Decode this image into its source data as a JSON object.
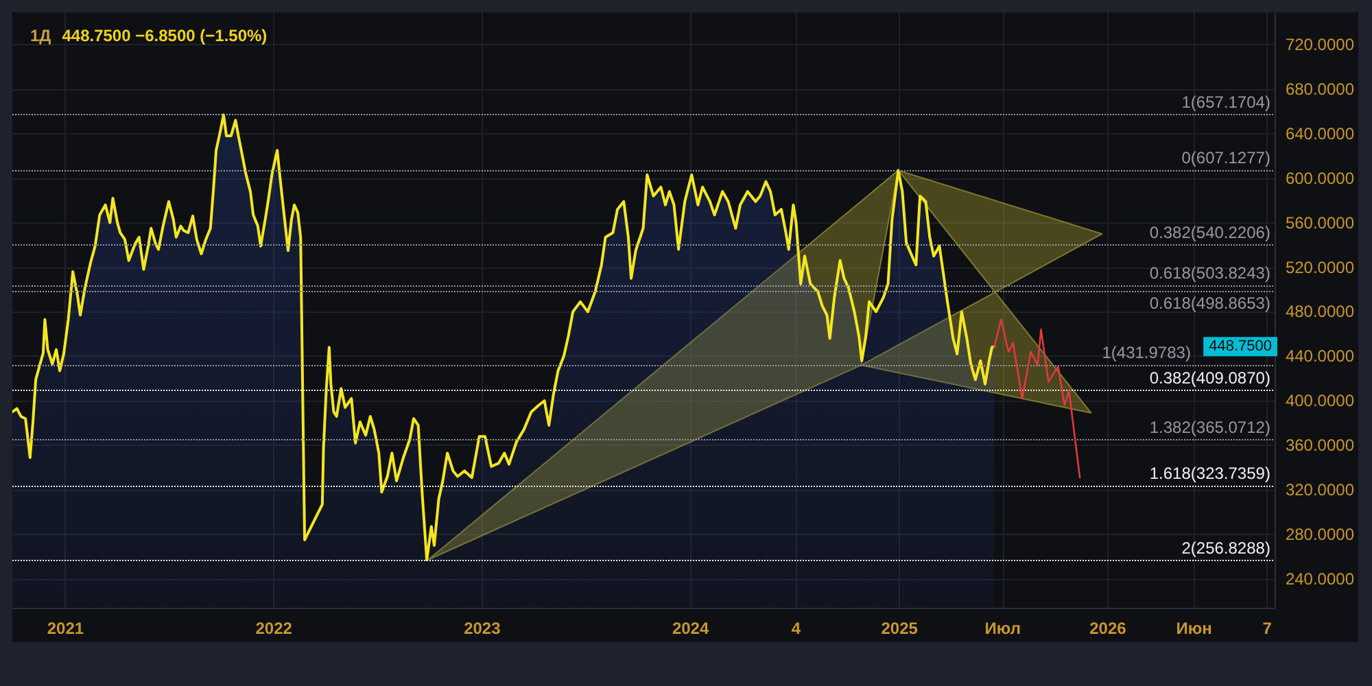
{
  "chart_data": {
    "type": "area",
    "title": "1Д",
    "subtitle": "448.7500 −6.8500 (−1.50%)",
    "x": [
      "2020-09-30",
      "2020-10-08",
      "2020-10-15",
      "2020-10-23",
      "2020-10-31",
      "2020-11-05",
      "2020-11-10",
      "2020-11-23",
      "2020-11-26",
      "2020-12-01",
      "2020-12-09",
      "2020-12-16",
      "2020-12-22",
      "2020-12-29",
      "2021-01-06",
      "2021-01-14",
      "2021-01-22",
      "2021-01-27",
      "2021-02-04",
      "2021-02-14",
      "2021-02-22",
      "2021-03-02",
      "2021-03-12",
      "2021-03-20",
      "2021-03-25",
      "2021-04-02",
      "2021-04-07",
      "2021-04-15",
      "2021-04-22",
      "2021-05-03",
      "2021-05-10",
      "2021-05-18",
      "2021-05-26",
      "2021-05-31",
      "2021-06-08",
      "2021-06-13",
      "2021-06-21",
      "2021-07-01",
      "2021-07-09",
      "2021-07-14",
      "2021-07-22",
      "2021-07-27",
      "2021-08-04",
      "2021-08-12",
      "2021-08-19",
      "2021-08-27",
      "2021-09-04",
      "2021-09-12",
      "2021-09-17",
      "2021-09-22",
      "2021-09-30",
      "2021-10-05",
      "2021-10-10",
      "2021-10-18",
      "2021-10-26",
      "2021-10-31",
      "2021-11-05",
      "2021-11-13",
      "2021-11-21",
      "2021-11-26",
      "2021-12-04",
      "2021-12-09",
      "2021-12-17",
      "2021-12-22",
      "2021-12-29",
      "2022-01-07",
      "2022-01-12",
      "2022-01-18",
      "2022-01-26",
      "2022-02-01",
      "2022-02-06",
      "2022-02-12",
      "2022-02-17",
      "2022-02-24",
      "2022-03-27",
      "2022-03-29",
      "2022-04-03",
      "2022-04-08",
      "2022-04-11",
      "2022-04-16",
      "2022-04-21",
      "2022-04-29",
      "2022-05-06",
      "2022-05-17",
      "2022-05-24",
      "2022-06-01",
      "2022-06-11",
      "2022-06-19",
      "2022-06-26",
      "2022-07-04",
      "2022-07-09",
      "2022-07-19",
      "2022-07-27",
      "2022-08-04",
      "2022-08-16",
      "2022-08-27",
      "2022-09-03",
      "2022-09-11",
      "2022-09-18",
      "2022-09-26",
      "2022-10-04",
      "2022-10-09",
      "2022-10-17",
      "2022-10-24",
      "2022-11-01",
      "2022-11-11",
      "2022-11-19",
      "2022-12-01",
      "2022-12-14",
      "2022-12-27",
      "2023-01-06",
      "2023-01-17",
      "2023-01-30",
      "2023-02-09",
      "2023-02-17",
      "2023-03-02",
      "2023-03-15",
      "2023-03-28",
      "2023-04-10",
      "2023-04-20",
      "2023-04-28",
      "2023-05-06",
      "2023-05-14",
      "2023-05-24",
      "2023-06-01",
      "2023-06-09",
      "2023-06-22",
      "2023-07-05",
      "2023-07-18",
      "2023-07-29",
      "2023-08-05",
      "2023-08-18",
      "2023-08-26",
      "2023-09-06",
      "2023-09-14",
      "2023-09-19",
      "2023-09-27",
      "2023-10-10",
      "2023-10-17",
      "2023-10-28",
      "2023-11-10",
      "2023-11-18",
      "2023-11-25",
      "2023-12-03",
      "2023-12-11",
      "2023-12-22",
      "2024-01-03",
      "2024-01-14",
      "2024-01-22",
      "2024-02-04",
      "2024-02-12",
      "2024-02-26",
      "2024-03-07",
      "2024-03-20",
      "2024-03-28",
      "2024-04-10",
      "2024-04-24",
      "2024-05-02",
      "2024-05-12",
      "2024-05-20",
      "2024-05-28",
      "2024-06-08",
      "2024-06-16",
      "2024-06-21",
      "2024-06-29",
      "2024-07-04",
      "2024-07-12",
      "2024-07-19",
      "2024-07-29",
      "2024-08-11",
      "2024-08-19",
      "2024-08-27",
      "2024-09-01",
      "2024-09-09",
      "2024-09-19",
      "2024-09-26",
      "2024-10-04",
      "2024-10-14",
      "2024-10-22",
      "2024-10-27",
      "2024-11-03",
      "2024-11-09",
      "2024-11-21",
      "2024-12-04",
      "2024-12-12",
      "2024-12-19",
      "2024-12-30",
      "2025-01-06",
      "2025-01-13",
      "2025-01-23",
      "2025-01-30",
      "2025-02-06",
      "2025-02-16",
      "2025-02-23",
      "2025-03-02",
      "2025-03-12",
      "2025-03-19",
      "2025-03-26",
      "2025-04-05",
      "2025-04-12",
      "2025-04-20",
      "2025-04-29",
      "2025-05-06",
      "2025-05-14",
      "2025-05-23",
      "2025-05-31",
      "2025-06-07",
      "2025-06-12",
      "2025-06-16"
    ],
    "series": [
      {
        "color": "#f5e620",
        "values": [
          390,
          393,
          386,
          384,
          349,
          380,
          419,
          443,
          473,
          446,
          433,
          446,
          427,
          442,
          473,
          516,
          495,
          477,
          501,
          524,
          539,
          567,
          576,
          560,
          582,
          560,
          551,
          545,
          526,
          541,
          547,
          518,
          539,
          555,
          541,
          536,
          557,
          579,
          563,
          547,
          557,
          553,
          551,
          566,
          545,
          532,
          545,
          555,
          588,
          625,
          644,
          657,
          638,
          638,
          652,
          638,
          625,
          604,
          588,
          567,
          557,
          539,
          563,
          579,
          604,
          625,
          600,
          572,
          535,
          563,
          576,
          569,
          547,
          275,
          307,
          357,
          411,
          448,
          415,
          390,
          386,
          411,
          394,
          402,
          362,
          381,
          369,
          386,
          374,
          353,
          318,
          332,
          353,
          328,
          349,
          365,
          384,
          378,
          316,
          257,
          287,
          270,
          312,
          328,
          353,
          337,
          332,
          337,
          331,
          368,
          368,
          341,
          344,
          353,
          343,
          363,
          374,
          390,
          396,
          400,
          378,
          406,
          427,
          440,
          458,
          480,
          489,
          480,
          498,
          522,
          547,
          551,
          572,
          579,
          547,
          510,
          535,
          555,
          603,
          584,
          592,
          576,
          588,
          576,
          536,
          579,
          603,
          576,
          592,
          579,
          567,
          588,
          579,
          555,
          576,
          588,
          579,
          584,
          597,
          588,
          567,
          572,
          551,
          536,
          576,
          560,
          505,
          530,
          505,
          498,
          485,
          477,
          456,
          493,
          526,
          510,
          501,
          480,
          458,
          436,
          458,
          489,
          480,
          493,
          505,
          563,
          607,
          588,
          542,
          530,
          522,
          584,
          579,
          547,
          530,
          539,
          514,
          489,
          456,
          442,
          480,
          456,
          433,
          419,
          436,
          415,
          436,
          448,
          448.75
        ]
      },
      {
        "type": "area",
        "color": "#b3aa35",
        "x": [
          "2022-09-28",
          "2024-12-30",
          "2025-12-22",
          "2024-10-26",
          "2025-12-03",
          "2024-12-30",
          "2024-10-26",
          "2022-09-28"
        ],
        "values": [
          257,
          607,
          550,
          432,
          389,
          607,
          432,
          257
        ]
      },
      {
        "type": "line",
        "color": "#e0393e",
        "x": [
          "2025-06-16",
          "2025-06-28",
          "2025-07-11",
          "2025-07-19",
          "2025-08-04",
          "2025-08-19",
          "2025-08-31",
          "2025-09-06",
          "2025-09-19",
          "2025-10-06",
          "2025-10-17",
          "2025-10-25",
          "2025-11-13"
        ],
        "values": [
          448,
          473,
          444,
          452,
          402,
          444,
          432,
          464,
          417,
          431,
          396,
          409,
          331
        ]
      }
    ],
    "xlim": [
      "2020-09-30",
      "2026-10-20"
    ],
    "xticks": [
      {
        "value": "2021-01-01",
        "label": "2021"
      },
      {
        "value": "2022-01-01",
        "label": "2022"
      },
      {
        "value": "2023-01-01",
        "label": "2023"
      },
      {
        "value": "2024-01-01",
        "label": "2024"
      },
      {
        "value": "2024-07-04",
        "label": "4"
      },
      {
        "value": "2025-01-01",
        "label": "2025"
      },
      {
        "value": "2025-07-01",
        "label": "Июл"
      },
      {
        "value": "2026-01-01",
        "label": "2026"
      },
      {
        "value": "2026-06-01",
        "label": "Июн"
      },
      {
        "value": "2026-10-07",
        "label": "7"
      }
    ],
    "ylim": [
      214,
      749
    ],
    "yticks": [
      {
        "value": 240,
        "label": "240.0000"
      },
      {
        "value": 280,
        "label": "280.0000"
      },
      {
        "value": 320,
        "label": "320.0000"
      },
      {
        "value": 360,
        "label": "360.0000"
      },
      {
        "value": 400,
        "label": "400.0000"
      },
      {
        "value": 440,
        "label": "440.0000"
      },
      {
        "value": 480,
        "label": "480.0000"
      },
      {
        "value": 520,
        "label": "520.0000"
      },
      {
        "value": 560,
        "label": "560.0000"
      },
      {
        "value": 600,
        "label": "600.0000"
      },
      {
        "value": 640,
        "label": "640.0000"
      },
      {
        "value": 680,
        "label": "680.0000"
      },
      {
        "value": 720,
        "label": "720.0000"
      }
    ],
    "grid": true,
    "marker": "none",
    "ref_lines": [
      {
        "axis": "y",
        "value": 657.1704,
        "label": "1(657.1704)",
        "color": "#9598a1",
        "line_style": "dotted"
      },
      {
        "axis": "y",
        "value": 607.1277,
        "label": "0(607.1277)",
        "color": "#9598a1",
        "line_style": "dotted"
      },
      {
        "axis": "y",
        "value": 540.2206,
        "label": "0.382(540.2206)",
        "color": "#9598a1",
        "line_style": "dotted"
      },
      {
        "axis": "y",
        "value": 503.8243,
        "label": "0.618(503.8243)",
        "color": "#9598a1",
        "line_style": "dotted"
      },
      {
        "axis": "y",
        "value": 498.8653,
        "label": "0.618(498.8653)",
        "color": "#9598a1",
        "line_style": "dotted"
      },
      {
        "axis": "y",
        "value": 431.9783,
        "label": "1(431.9783)",
        "color": "#9598a1",
        "line_style": "dotted"
      },
      {
        "axis": "y",
        "value": 409.087,
        "label": "0.382(409.0870)",
        "color": "#f0f0f2",
        "line_style": "dotted"
      },
      {
        "axis": "y",
        "value": 365.0712,
        "label": "1.382(365.0712)",
        "color": "#9598a1",
        "line_style": "dotted"
      },
      {
        "axis": "y",
        "value": 323.7359,
        "label": "1.618(323.7359)",
        "color": "#f0f0f2",
        "line_style": "dotted"
      },
      {
        "axis": "y",
        "value": 256.8288,
        "label": "2(256.8288)",
        "color": "#f0f0f2",
        "line_style": "dotted"
      }
    ],
    "annotations": [
      "448.7500"
    ]
  }
}
